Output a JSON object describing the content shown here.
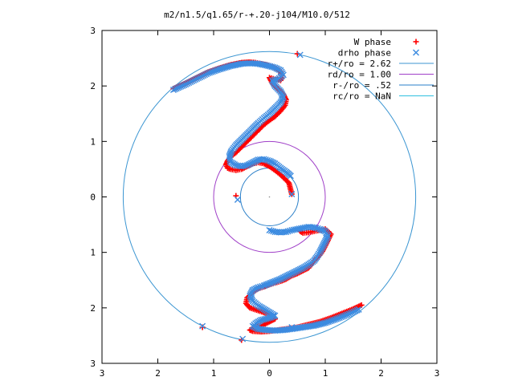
{
  "chart_data": {
    "type": "scatter",
    "title": "m2/n1.5/q1.65/r-+.20-j104/M10.0/512",
    "xlim": [
      -3,
      3
    ],
    "ylim": [
      -3,
      3
    ],
    "x_ticks": [
      -3,
      -2,
      -1,
      0,
      1,
      2,
      3
    ],
    "y_ticks": [
      -3,
      -2,
      -1,
      0,
      1,
      2,
      3
    ],
    "x_tick_labels": [
      "3",
      "2",
      "1",
      "0",
      "1",
      "2",
      "3"
    ],
    "y_tick_labels": [
      "3",
      "2",
      "1",
      "0",
      "1",
      "2",
      "3"
    ],
    "grid": false,
    "legend_position": "top-right",
    "series": [
      {
        "name": "W phase",
        "kind": "points",
        "marker": "plus",
        "color": "#ff0000",
        "x": [
          -1.72,
          -1.5,
          -1.3,
          -1.1,
          -0.9,
          -0.7,
          -0.5,
          -0.35,
          -0.25,
          -0.15,
          -0.05,
          0.05,
          0.15,
          0.2,
          0.22,
          0.2,
          0.1,
          0.0,
          0.05,
          0.15,
          0.25,
          0.3,
          0.28,
          0.2,
          0.1,
          0.0,
          -0.1,
          -0.2,
          -0.3,
          -0.4,
          -0.5,
          -0.6,
          -0.7,
          -0.75,
          -0.78,
          -0.75,
          -0.7,
          -0.6,
          -0.5,
          -0.4,
          -0.3,
          -0.2,
          -0.1,
          0.0,
          0.1,
          0.2,
          0.25,
          0.35,
          0.4,
          -0.6,
          0.5,
          0.55,
          0.6,
          0.7,
          0.8,
          0.9,
          1.0,
          1.1,
          1.05,
          1.0,
          0.95,
          0.9,
          0.85,
          0.8,
          0.75,
          0.7,
          0.6,
          0.5,
          0.4,
          0.3,
          0.2,
          0.1,
          0.0,
          -0.1,
          -0.2,
          -0.3,
          -0.4,
          -0.42,
          -0.35,
          -0.2,
          -0.05,
          0.05,
          0.1,
          0.0,
          -0.1,
          -0.25,
          -0.35,
          -0.3,
          -0.15,
          0.0,
          0.15,
          0.3,
          0.5,
          0.7,
          0.9,
          1.1,
          1.3,
          1.5,
          1.65,
          -1.2,
          -0.5
        ],
        "y": [
          1.95,
          2.05,
          2.15,
          2.25,
          2.32,
          2.38,
          2.42,
          2.43,
          2.42,
          2.4,
          2.38,
          2.35,
          2.3,
          2.25,
          2.15,
          2.1,
          2.12,
          2.15,
          2.05,
          1.95,
          1.85,
          1.75,
          1.65,
          1.55,
          1.45,
          1.38,
          1.3,
          1.2,
          1.1,
          1.0,
          0.9,
          0.8,
          0.72,
          0.65,
          0.58,
          0.52,
          0.5,
          0.48,
          0.5,
          0.55,
          0.6,
          0.62,
          0.6,
          0.55,
          0.48,
          0.4,
          0.35,
          0.25,
          0.05,
          0.02,
          2.58,
          -0.62,
          -0.65,
          -0.64,
          -0.62,
          -0.6,
          -0.58,
          -0.67,
          -0.78,
          -0.88,
          -0.98,
          -1.05,
          -1.1,
          -1.15,
          -1.22,
          -1.28,
          -1.33,
          -1.38,
          -1.42,
          -1.48,
          -1.52,
          -1.55,
          -1.58,
          -1.62,
          -1.65,
          -1.72,
          -1.82,
          -1.92,
          -2.0,
          -2.05,
          -2.1,
          -2.15,
          -2.2,
          -2.25,
          -2.3,
          -2.35,
          -2.4,
          -2.42,
          -2.43,
          -2.42,
          -2.4,
          -2.38,
          -2.35,
          -2.3,
          -2.25,
          -2.18,
          -2.1,
          -2.02,
          -1.95,
          -2.35,
          -2.58
        ]
      },
      {
        "name": "drho phase",
        "kind": "points",
        "marker": "cross",
        "color": "#3c8be0",
        "x": [
          -1.72,
          -1.5,
          -1.3,
          -1.1,
          -0.9,
          -0.7,
          -0.5,
          -0.35,
          -0.2,
          -0.05,
          0.1,
          0.2,
          0.25,
          0.15,
          0.05,
          0.1,
          0.2,
          0.25,
          0.2,
          0.1,
          0.0,
          -0.1,
          -0.2,
          -0.3,
          -0.4,
          -0.5,
          -0.6,
          -0.68,
          -0.72,
          -0.7,
          -0.6,
          -0.5,
          -0.4,
          -0.3,
          -0.2,
          -0.1,
          0.0,
          0.1,
          0.2,
          0.3,
          0.38,
          -0.57,
          0.4,
          0.55,
          0.0,
          0.1,
          0.2,
          0.3,
          0.4,
          0.5,
          0.6,
          0.7,
          0.8,
          0.9,
          1.0,
          1.05,
          1.0,
          0.95,
          0.9,
          0.85,
          0.8,
          0.7,
          0.6,
          0.5,
          0.4,
          0.3,
          0.2,
          0.1,
          0.0,
          -0.1,
          -0.2,
          -0.3,
          -0.35,
          -0.3,
          -0.2,
          -0.1,
          0.0,
          0.1,
          0.0,
          -0.15,
          -0.25,
          -0.3,
          -0.2,
          -0.05,
          0.1,
          0.25,
          0.4,
          0.6,
          0.8,
          1.0,
          1.2,
          1.4,
          1.6,
          -1.2,
          -0.48,
          0.4
        ],
        "y": [
          1.93,
          2.03,
          2.13,
          2.23,
          2.3,
          2.36,
          2.4,
          2.41,
          2.4,
          2.37,
          2.33,
          2.28,
          2.2,
          2.12,
          2.1,
          2.0,
          1.9,
          1.8,
          1.7,
          1.6,
          1.5,
          1.42,
          1.33,
          1.23,
          1.13,
          1.03,
          0.93,
          0.83,
          0.73,
          0.63,
          0.57,
          0.55,
          0.57,
          0.62,
          0.67,
          0.68,
          0.65,
          0.6,
          0.52,
          0.45,
          0.38,
          -0.05,
          0.05,
          2.56,
          -0.6,
          -0.63,
          -0.64,
          -0.63,
          -0.6,
          -0.58,
          -0.56,
          -0.54,
          -0.55,
          -0.58,
          -0.62,
          -0.7,
          -0.8,
          -0.9,
          -1.0,
          -1.08,
          -1.15,
          -1.22,
          -1.28,
          -1.33,
          -1.38,
          -1.43,
          -1.48,
          -1.52,
          -1.56,
          -1.6,
          -1.63,
          -1.68,
          -1.78,
          -1.88,
          -1.96,
          -2.02,
          -2.08,
          -2.14,
          -2.18,
          -2.22,
          -2.28,
          -2.33,
          -2.38,
          -2.4,
          -2.41,
          -2.4,
          -2.38,
          -2.35,
          -2.32,
          -2.27,
          -2.2,
          -2.12,
          -2.03,
          -2.33,
          -2.56,
          -2.35
        ]
      },
      {
        "name": "r+/ro = 2.62",
        "kind": "circle",
        "radius": 2.62,
        "color": "#3c96d2"
      },
      {
        "name": "rd/ro = 1.00",
        "kind": "circle",
        "radius": 1.0,
        "color": "#a040c8"
      },
      {
        "name": "r-/ro = .52",
        "kind": "circle",
        "radius": 0.52,
        "color": "#2a7fc8"
      },
      {
        "name": "rc/ro = NaN",
        "kind": "circle",
        "radius": null,
        "color": "#30c0e0"
      }
    ]
  }
}
